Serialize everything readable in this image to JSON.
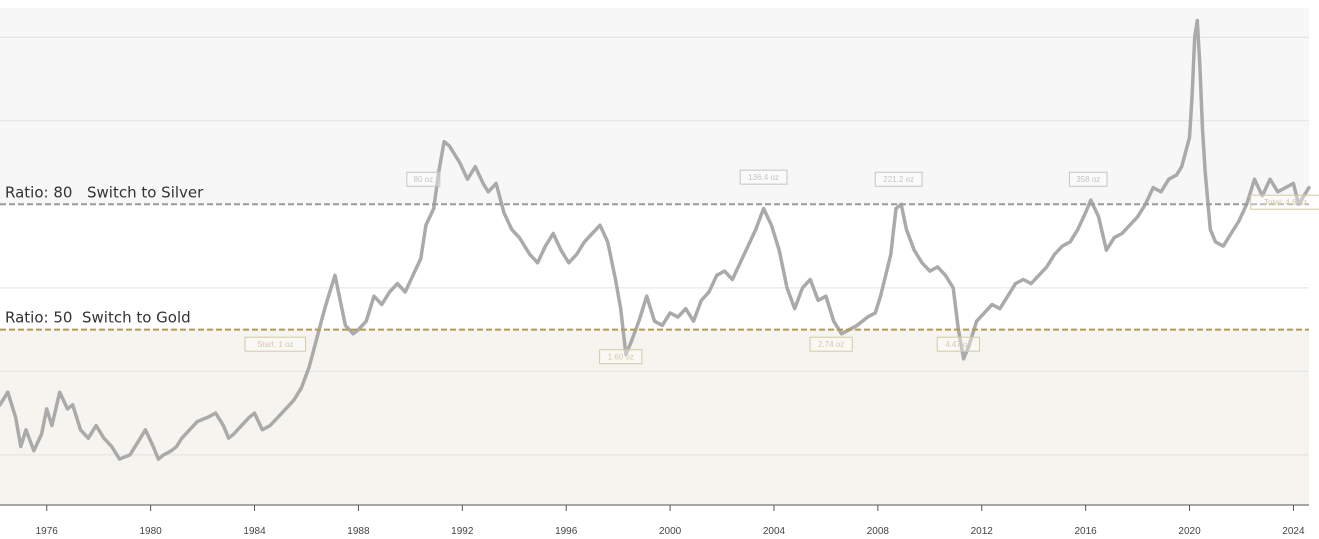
{
  "colors": {
    "plot_bg": "#f5f5f5",
    "silver_zone": "#f7f7f7",
    "neutral_zone": "#ffffff",
    "gold_zone": "#f6f4ee",
    "gridline": "#e2e2e2",
    "line": "#aaaaaa",
    "silver_ref": "#9a9a9a",
    "gold_ref": "#b39a58",
    "annotation_silver": "#c4c4c4",
    "annotation_gold": "#d4c9a6",
    "axis": "#555555"
  },
  "chart_data": {
    "type": "line",
    "title": "",
    "xlabel": "",
    "ylabel": "",
    "xlim": [
      1974.2,
      2024.6
    ],
    "ylim": [
      8,
      127
    ],
    "x_ticks": [
      {
        "value": 1976,
        "label": "1976"
      },
      {
        "value": 1980,
        "label": "1980"
      },
      {
        "value": 1984,
        "label": "1984"
      },
      {
        "value": 1988,
        "label": "1988"
      },
      {
        "value": 1992,
        "label": "1992"
      },
      {
        "value": 1996,
        "label": "1996"
      },
      {
        "value": 2000,
        "label": "2000"
      },
      {
        "value": 2004,
        "label": "2004"
      },
      {
        "value": 2008,
        "label": "2008"
      },
      {
        "value": 2012,
        "label": "2012"
      },
      {
        "value": 2016,
        "label": "2016"
      },
      {
        "value": 2020,
        "label": "2020"
      },
      {
        "value": 2024,
        "label": "2024"
      }
    ],
    "gridlines_y": [
      20,
      40,
      60,
      100,
      120
    ],
    "y_tick_labels_visible": false,
    "reference_lines": [
      {
        "value": 80,
        "label": "Ratio: 80",
        "action": "Switch to Silver",
        "kind": "silver"
      },
      {
        "value": 50,
        "label": "Ratio: 50",
        "action": "Switch to Gold",
        "kind": "gold"
      }
    ],
    "series": [
      {
        "points": [
          [
            1974.2,
            32
          ],
          [
            1974.5,
            35
          ],
          [
            1974.8,
            29
          ],
          [
            1975.0,
            22
          ],
          [
            1975.2,
            26
          ],
          [
            1975.5,
            21
          ],
          [
            1975.8,
            25
          ],
          [
            1976.0,
            31
          ],
          [
            1976.2,
            27
          ],
          [
            1976.5,
            35
          ],
          [
            1976.8,
            31
          ],
          [
            1977.0,
            32
          ],
          [
            1977.3,
            26
          ],
          [
            1977.6,
            24
          ],
          [
            1977.9,
            27
          ],
          [
            1978.2,
            24
          ],
          [
            1978.5,
            22
          ],
          [
            1978.8,
            19
          ],
          [
            1979.2,
            20
          ],
          [
            1979.5,
            23
          ],
          [
            1979.8,
            26
          ],
          [
            1980.1,
            22
          ],
          [
            1980.3,
            19
          ],
          [
            1980.5,
            20
          ],
          [
            1980.8,
            21
          ],
          [
            1981.0,
            22
          ],
          [
            1981.2,
            24
          ],
          [
            1981.5,
            26
          ],
          [
            1981.8,
            28
          ],
          [
            1982.2,
            29
          ],
          [
            1982.5,
            30
          ],
          [
            1982.8,
            27
          ],
          [
            1983.0,
            24
          ],
          [
            1983.2,
            25
          ],
          [
            1983.5,
            27
          ],
          [
            1983.8,
            29
          ],
          [
            1984.0,
            30
          ],
          [
            1984.3,
            26
          ],
          [
            1984.6,
            27
          ],
          [
            1984.9,
            29
          ],
          [
            1985.2,
            31
          ],
          [
            1985.5,
            33
          ],
          [
            1985.8,
            36
          ],
          [
            1986.1,
            41
          ],
          [
            1986.4,
            48
          ],
          [
            1986.7,
            55
          ],
          [
            1986.9,
            59
          ],
          [
            1987.1,
            63
          ],
          [
            1987.3,
            57
          ],
          [
            1987.5,
            51
          ],
          [
            1987.8,
            49
          ],
          [
            1988.0,
            50
          ],
          [
            1988.3,
            52
          ],
          [
            1988.6,
            58
          ],
          [
            1988.9,
            56
          ],
          [
            1989.2,
            59
          ],
          [
            1989.5,
            61
          ],
          [
            1989.8,
            59
          ],
          [
            1990.1,
            63
          ],
          [
            1990.4,
            67
          ],
          [
            1990.6,
            75
          ],
          [
            1990.9,
            79
          ],
          [
            1991.1,
            88
          ],
          [
            1991.3,
            95
          ],
          [
            1991.5,
            94
          ],
          [
            1991.7,
            92
          ],
          [
            1991.9,
            90
          ],
          [
            1992.2,
            86
          ],
          [
            1992.5,
            89
          ],
          [
            1992.8,
            85
          ],
          [
            1993.0,
            83
          ],
          [
            1993.3,
            85
          ],
          [
            1993.6,
            78
          ],
          [
            1993.9,
            74
          ],
          [
            1994.2,
            72
          ],
          [
            1994.6,
            68
          ],
          [
            1994.9,
            66
          ],
          [
            1995.2,
            70
          ],
          [
            1995.5,
            73
          ],
          [
            1995.8,
            69
          ],
          [
            1996.1,
            66
          ],
          [
            1996.4,
            68
          ],
          [
            1996.7,
            71
          ],
          [
            1997.0,
            73
          ],
          [
            1997.3,
            75
          ],
          [
            1997.6,
            71
          ],
          [
            1997.9,
            62
          ],
          [
            1998.1,
            55
          ],
          [
            1998.3,
            44
          ],
          [
            1998.5,
            47
          ],
          [
            1998.8,
            52
          ],
          [
            1999.1,
            58
          ],
          [
            1999.4,
            52
          ],
          [
            1999.7,
            51
          ],
          [
            2000.0,
            54
          ],
          [
            2000.3,
            53
          ],
          [
            2000.6,
            55
          ],
          [
            2000.9,
            52
          ],
          [
            2001.2,
            57
          ],
          [
            2001.5,
            59
          ],
          [
            2001.8,
            63
          ],
          [
            2002.1,
            64
          ],
          [
            2002.4,
            62
          ],
          [
            2002.7,
            66
          ],
          [
            2003.0,
            70
          ],
          [
            2003.3,
            74
          ],
          [
            2003.6,
            79
          ],
          [
            2003.9,
            75
          ],
          [
            2004.2,
            69
          ],
          [
            2004.5,
            60
          ],
          [
            2004.8,
            55
          ],
          [
            2005.1,
            60
          ],
          [
            2005.4,
            62
          ],
          [
            2005.7,
            57
          ],
          [
            2006.0,
            58
          ],
          [
            2006.3,
            52
          ],
          [
            2006.6,
            49
          ],
          [
            2006.9,
            50
          ],
          [
            2007.2,
            51
          ],
          [
            2007.6,
            53
          ],
          [
            2007.9,
            54
          ],
          [
            2008.1,
            58
          ],
          [
            2008.3,
            63
          ],
          [
            2008.5,
            68
          ],
          [
            2008.7,
            79
          ],
          [
            2008.9,
            80
          ],
          [
            2009.1,
            74
          ],
          [
            2009.4,
            69
          ],
          [
            2009.7,
            66
          ],
          [
            2010.0,
            64
          ],
          [
            2010.3,
            65
          ],
          [
            2010.6,
            63
          ],
          [
            2010.9,
            60
          ],
          [
            2011.1,
            50
          ],
          [
            2011.3,
            43
          ],
          [
            2011.5,
            46
          ],
          [
            2011.8,
            52
          ],
          [
            2012.1,
            54
          ],
          [
            2012.4,
            56
          ],
          [
            2012.7,
            55
          ],
          [
            2013.0,
            58
          ],
          [
            2013.3,
            61
          ],
          [
            2013.6,
            62
          ],
          [
            2013.9,
            61
          ],
          [
            2014.2,
            63
          ],
          [
            2014.5,
            65
          ],
          [
            2014.8,
            68
          ],
          [
            2015.1,
            70
          ],
          [
            2015.4,
            71
          ],
          [
            2015.7,
            74
          ],
          [
            2016.0,
            78
          ],
          [
            2016.2,
            81
          ],
          [
            2016.5,
            77
          ],
          [
            2016.8,
            69
          ],
          [
            2017.1,
            72
          ],
          [
            2017.4,
            73
          ],
          [
            2017.7,
            75
          ],
          [
            2018.0,
            77
          ],
          [
            2018.3,
            80
          ],
          [
            2018.6,
            84
          ],
          [
            2018.9,
            83
          ],
          [
            2019.2,
            86
          ],
          [
            2019.5,
            87
          ],
          [
            2019.7,
            89
          ],
          [
            2020.0,
            96
          ],
          [
            2020.1,
            106
          ],
          [
            2020.2,
            120
          ],
          [
            2020.3,
            124
          ],
          [
            2020.4,
            113
          ],
          [
            2020.5,
            98
          ],
          [
            2020.6,
            88
          ],
          [
            2020.8,
            74
          ],
          [
            2021.0,
            71
          ],
          [
            2021.3,
            70
          ],
          [
            2021.6,
            73
          ],
          [
            2021.9,
            76
          ],
          [
            2022.2,
            80
          ],
          [
            2022.5,
            86
          ],
          [
            2022.8,
            82
          ],
          [
            2023.1,
            86
          ],
          [
            2023.4,
            83
          ],
          [
            2023.7,
            84
          ],
          [
            2024.0,
            85
          ],
          [
            2024.2,
            80
          ],
          [
            2024.4,
            82
          ],
          [
            2024.6,
            84
          ]
        ]
      }
    ],
    "annotations": [
      {
        "x": 1984.8,
        "y": 46.5,
        "text": "Start. 1 oz",
        "kind": "gold"
      },
      {
        "x": 1990.5,
        "y": 86,
        "text": "80 oz",
        "kind": "silver"
      },
      {
        "x": 1998.1,
        "y": 43.5,
        "text": "1.60 oz",
        "kind": "gold"
      },
      {
        "x": 2003.6,
        "y": 86.5,
        "text": "136.4 oz",
        "kind": "silver"
      },
      {
        "x": 2006.2,
        "y": 46.5,
        "text": "2.74 oz",
        "kind": "gold"
      },
      {
        "x": 2008.8,
        "y": 86,
        "text": "221.2 oz",
        "kind": "silver"
      },
      {
        "x": 2011.1,
        "y": 46.5,
        "text": "4.47 oz",
        "kind": "gold"
      },
      {
        "x": 2016.1,
        "y": 86,
        "text": "358 oz",
        "kind": "silver"
      },
      {
        "x": 2023.7,
        "y": 80.5,
        "text": "Total: 4.8 oz",
        "kind": "gold"
      }
    ]
  }
}
